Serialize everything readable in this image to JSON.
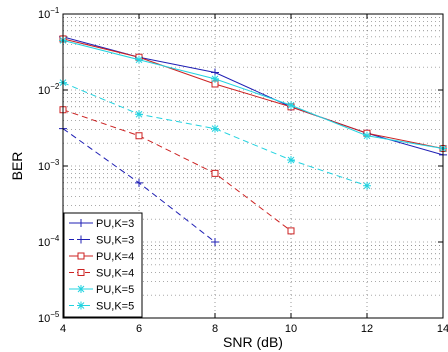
{
  "chart_data": {
    "type": "line",
    "xlabel": "SNR (dB)",
    "ylabel": "BER",
    "xlim": [
      4,
      14
    ],
    "ylim": [
      1e-05,
      0.1
    ],
    "yscale": "log",
    "grid": true,
    "legend_position": "bottom-left",
    "x_ticks": [
      4,
      6,
      8,
      10,
      12,
      14
    ],
    "y_ticks": [
      {
        "value": 1e-05,
        "base": "10",
        "exp": "−5"
      },
      {
        "value": 0.0001,
        "base": "10",
        "exp": "−4"
      },
      {
        "value": 0.001,
        "base": "10",
        "exp": "−3"
      },
      {
        "value": 0.01,
        "base": "10",
        "exp": "−2"
      },
      {
        "value": 0.1,
        "base": "10",
        "exp": "−1"
      }
    ],
    "series": [
      {
        "name": "PU,K=3",
        "color": "#1f1fb4",
        "dash": "solid",
        "marker": "plus",
        "x": [
          4,
          6,
          8,
          10,
          12,
          14
        ],
        "y": [
          0.05,
          0.027,
          0.017,
          0.006,
          0.0027,
          0.0014
        ]
      },
      {
        "name": "SU,K=3",
        "color": "#1f1fb4",
        "dash": "dashed",
        "marker": "plus",
        "x": [
          4,
          6,
          8
        ],
        "y": [
          0.0031,
          0.0006,
          0.0001
        ]
      },
      {
        "name": "PU,K=4",
        "color": "#cc2222",
        "dash": "solid",
        "marker": "square",
        "x": [
          4,
          6,
          8,
          10,
          12,
          14
        ],
        "y": [
          0.047,
          0.027,
          0.012,
          0.006,
          0.0027,
          0.0017
        ]
      },
      {
        "name": "SU,K=4",
        "color": "#cc2222",
        "dash": "dashed",
        "marker": "square",
        "x": [
          4,
          6,
          8,
          10
        ],
        "y": [
          0.0055,
          0.0025,
          0.0008,
          0.00014
        ]
      },
      {
        "name": "PU,K=5",
        "color": "#22d3e0",
        "dash": "solid",
        "marker": "star",
        "x": [
          4,
          6,
          8,
          10,
          12,
          14
        ],
        "y": [
          0.045,
          0.025,
          0.014,
          0.0063,
          0.0025,
          0.0017
        ]
      },
      {
        "name": "SU,K=5",
        "color": "#22d3e0",
        "dash": "dashed",
        "marker": "star",
        "x": [
          4,
          6,
          8,
          10,
          12
        ],
        "y": [
          0.0125,
          0.0048,
          0.0031,
          0.0012,
          0.00055
        ]
      }
    ]
  }
}
